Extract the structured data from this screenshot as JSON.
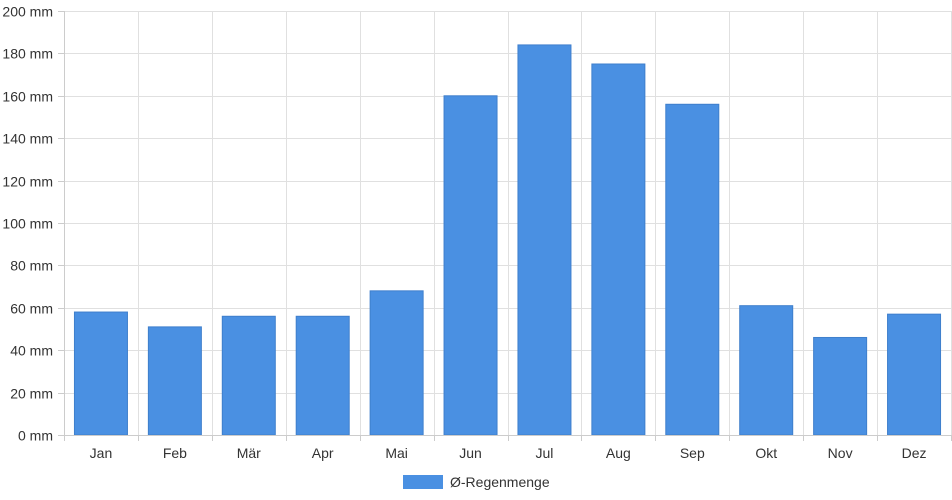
{
  "chart_data": {
    "type": "bar",
    "categories": [
      "Jan",
      "Feb",
      "Mär",
      "Apr",
      "Mai",
      "Jun",
      "Jul",
      "Aug",
      "Sep",
      "Okt",
      "Nov",
      "Dez"
    ],
    "series": [
      {
        "name": "Ø-Regenmenge",
        "values": [
          58,
          51,
          56,
          56,
          68,
          160,
          184,
          175,
          156,
          61,
          46,
          57
        ],
        "color": "#4a90e2"
      }
    ],
    "ylim": [
      0,
      200
    ],
    "yticks": [
      0,
      20,
      40,
      60,
      80,
      100,
      120,
      140,
      160,
      180,
      200
    ],
    "yunit": " mm",
    "ytick_labels": [
      "0 mm",
      "20 mm",
      "40 mm",
      "60 mm",
      "80 mm",
      "100 mm",
      "120 mm",
      "140 mm",
      "160 mm",
      "180 mm",
      "200 mm"
    ],
    "grid": true,
    "legend_position": "bottom-center",
    "legend": [
      "Ø-Regenmenge"
    ]
  }
}
